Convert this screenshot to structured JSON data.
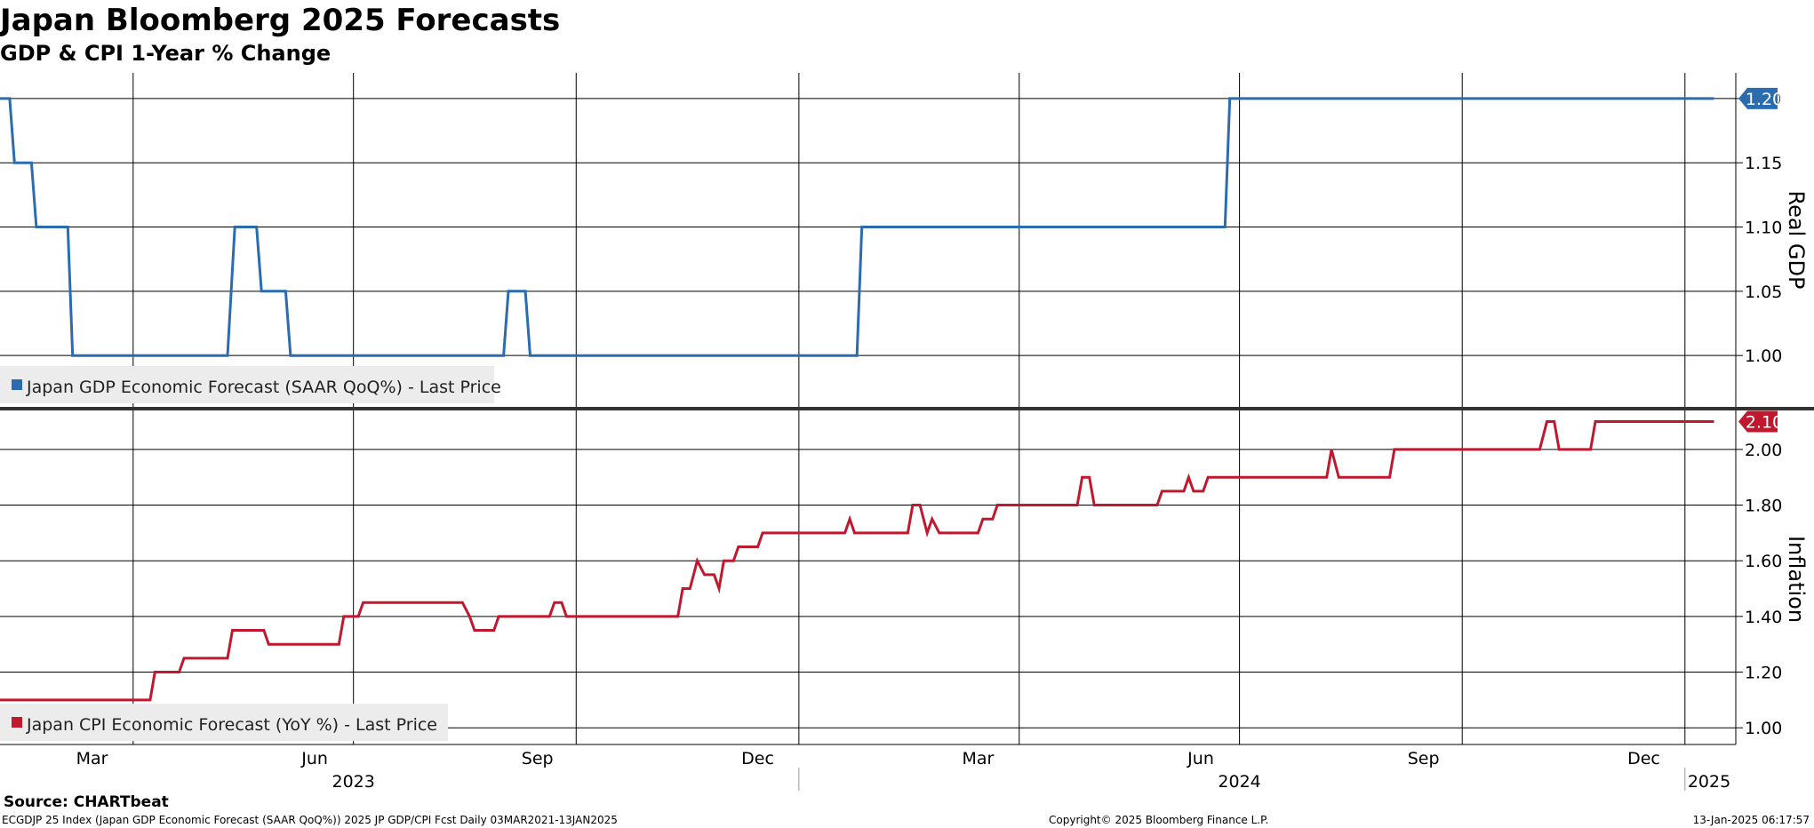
{
  "header": {
    "title": "Japan Bloomberg 2025 Forecasts",
    "subtitle": "GDP & CPI 1-Year % Change"
  },
  "footer": {
    "source": "Source: CHARTbeat",
    "index_info": "ECGDJP 25 Index (Japan GDP Economic Forecast (SAAR QoQ%)) 2025 JP GDP/CPI Fcst  Daily 03MAR2021-13JAN2025",
    "copyright": "Copyright© 2025 Bloomberg Finance L.P.",
    "timestamp": "13-Jan-2025 06:17:57"
  },
  "colors": {
    "gdp": "#2b6cb0",
    "cpi": "#c0182e"
  },
  "chart_data": [
    {
      "type": "line",
      "ylabel": "Real GDP",
      "ylim": [
        0.96,
        1.22
      ],
      "yticks": [
        "1.00",
        "1.05",
        "1.10",
        "1.15",
        "1.20"
      ],
      "last_value_label": "1.20",
      "xlim": [
        "2023-02-05",
        "2025-01-22"
      ],
      "series": [
        {
          "name": "Japan GDP Economic Forecast (SAAR QoQ%) - Last Price",
          "points": [
            [
              "2023-02-05",
              1.2
            ],
            [
              "2023-02-09",
              1.2
            ],
            [
              "2023-02-11",
              1.15
            ],
            [
              "2023-02-18",
              1.15
            ],
            [
              "2023-02-20",
              1.1
            ],
            [
              "2023-03-05",
              1.1
            ],
            [
              "2023-03-07",
              1.0
            ],
            [
              "2023-05-10",
              1.0
            ],
            [
              "2023-05-13",
              1.1
            ],
            [
              "2023-05-22",
              1.1
            ],
            [
              "2023-05-24",
              1.05
            ],
            [
              "2023-06-03",
              1.05
            ],
            [
              "2023-06-05",
              1.0
            ],
            [
              "2023-09-01",
              1.0
            ],
            [
              "2023-09-03",
              1.05
            ],
            [
              "2023-09-10",
              1.05
            ],
            [
              "2023-09-12",
              1.0
            ],
            [
              "2024-01-25",
              1.0
            ],
            [
              "2024-01-27",
              1.1
            ],
            [
              "2024-06-25",
              1.1
            ],
            [
              "2024-06-27",
              1.2
            ],
            [
              "2025-01-13",
              1.2
            ]
          ]
        }
      ]
    },
    {
      "type": "line",
      "ylabel": "Inflation",
      "ylim": [
        0.94,
        2.14
      ],
      "yticks": [
        "1.00",
        "1.20",
        "1.40",
        "1.60",
        "1.80",
        "2.00"
      ],
      "last_value_label": "2.10",
      "xlim": [
        "2023-02-05",
        "2025-01-22"
      ],
      "x_ticks": [
        "Mar",
        "Jun",
        "Sep",
        "Dec",
        "Mar",
        "Jun",
        "Sep",
        "Dec"
      ],
      "x_years": [
        "2023",
        "2024",
        "2025"
      ],
      "series": [
        {
          "name": "Japan CPI Economic Forecast (YoY %) - Last Price",
          "points": [
            [
              "2023-02-05",
              1.1
            ],
            [
              "2023-04-08",
              1.1
            ],
            [
              "2023-04-10",
              1.2
            ],
            [
              "2023-04-20",
              1.2
            ],
            [
              "2023-04-22",
              1.25
            ],
            [
              "2023-05-10",
              1.25
            ],
            [
              "2023-05-12",
              1.35
            ],
            [
              "2023-05-25",
              1.35
            ],
            [
              "2023-05-27",
              1.3
            ],
            [
              "2023-06-25",
              1.3
            ],
            [
              "2023-06-27",
              1.4
            ],
            [
              "2023-07-03",
              1.4
            ],
            [
              "2023-07-05",
              1.45
            ],
            [
              "2023-08-15",
              1.45
            ],
            [
              "2023-08-18",
              1.4
            ],
            [
              "2023-08-20",
              1.35
            ],
            [
              "2023-08-28",
              1.35
            ],
            [
              "2023-08-30",
              1.4
            ],
            [
              "2023-09-20",
              1.4
            ],
            [
              "2023-09-22",
              1.45
            ],
            [
              "2023-09-25",
              1.45
            ],
            [
              "2023-09-27",
              1.4
            ],
            [
              "2023-11-12",
              1.4
            ],
            [
              "2023-11-14",
              1.5
            ],
            [
              "2023-11-17",
              1.5
            ],
            [
              "2023-11-20",
              1.6
            ],
            [
              "2023-11-23",
              1.55
            ],
            [
              "2023-11-27",
              1.55
            ],
            [
              "2023-11-29",
              1.5
            ],
            [
              "2023-12-01",
              1.6
            ],
            [
              "2023-12-05",
              1.6
            ],
            [
              "2023-12-07",
              1.65
            ],
            [
              "2023-12-15",
              1.65
            ],
            [
              "2023-12-17",
              1.7
            ],
            [
              "2024-01-20",
              1.7
            ],
            [
              "2024-01-22",
              1.75
            ],
            [
              "2024-01-24",
              1.7
            ],
            [
              "2024-02-15",
              1.7
            ],
            [
              "2024-02-17",
              1.8
            ],
            [
              "2024-02-20",
              1.8
            ],
            [
              "2024-02-23",
              1.7
            ],
            [
              "2024-02-25",
              1.75
            ],
            [
              "2024-02-28",
              1.7
            ],
            [
              "2024-03-15",
              1.7
            ],
            [
              "2024-03-17",
              1.75
            ],
            [
              "2024-03-21",
              1.75
            ],
            [
              "2024-03-23",
              1.8
            ],
            [
              "2024-04-25",
              1.8
            ],
            [
              "2024-04-27",
              1.9
            ],
            [
              "2024-04-30",
              1.9
            ],
            [
              "2024-05-02",
              1.8
            ],
            [
              "2024-05-28",
              1.8
            ],
            [
              "2024-05-30",
              1.85
            ],
            [
              "2024-06-08",
              1.85
            ],
            [
              "2024-06-10",
              1.9
            ],
            [
              "2024-06-12",
              1.85
            ],
            [
              "2024-06-16",
              1.85
            ],
            [
              "2024-06-18",
              1.9
            ],
            [
              "2024-08-06",
              1.9
            ],
            [
              "2024-08-08",
              2.0
            ],
            [
              "2024-08-11",
              1.9
            ],
            [
              "2024-09-01",
              1.9
            ],
            [
              "2024-09-03",
              2.0
            ],
            [
              "2024-11-02",
              2.0
            ],
            [
              "2024-11-05",
              2.1
            ],
            [
              "2024-11-08",
              2.1
            ],
            [
              "2024-11-10",
              2.0
            ],
            [
              "2024-11-23",
              2.0
            ],
            [
              "2024-11-25",
              2.1
            ],
            [
              "2025-01-13",
              2.1
            ]
          ]
        }
      ]
    }
  ]
}
